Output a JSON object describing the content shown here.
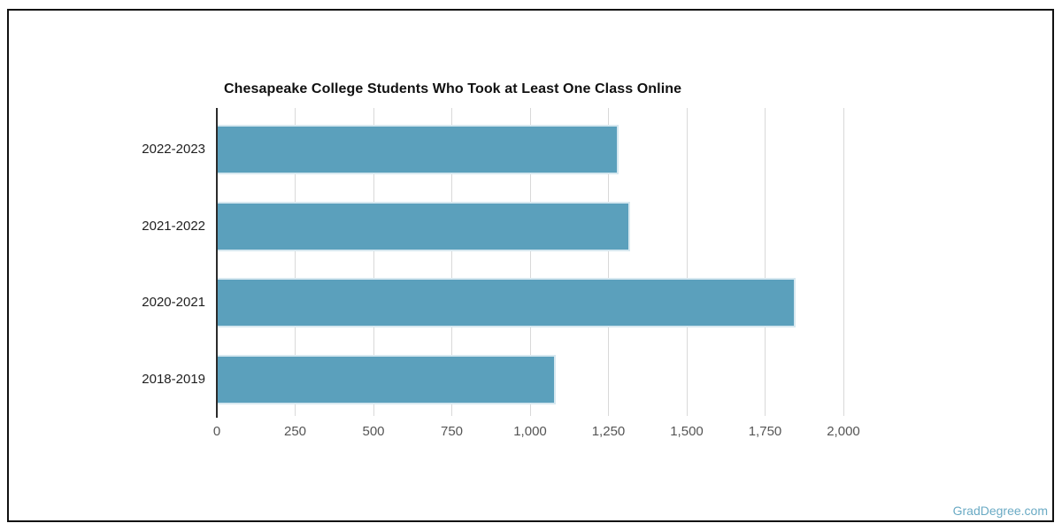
{
  "frame": {
    "border_color": "#111111",
    "background": "#ffffff"
  },
  "chart_data": {
    "type": "bar",
    "orientation": "horizontal",
    "title": "Chesapeake College Students Who Took at Least One Class Online",
    "categories": [
      "2022-2023",
      "2021-2022",
      "2020-2021",
      "2018-2019"
    ],
    "values": [
      1280,
      1315,
      1845,
      1080
    ],
    "xlabel": "",
    "ylabel": "",
    "xlim": [
      0,
      2000
    ],
    "x_ticks": [
      0,
      250,
      500,
      750,
      1000,
      1250,
      1500,
      1750,
      2000
    ],
    "x_tick_labels": [
      "0",
      "250",
      "500",
      "750",
      "1,000",
      "1,250",
      "1,500",
      "1,750",
      "2,000"
    ],
    "bar_color": "#5ba0bc",
    "bar_edge_color": "#d7e8f0",
    "gridline_color": "#d9d9d9",
    "axis_line_color": "#2b2b2b",
    "grid": true,
    "legend": "none"
  },
  "watermark": {
    "text": "GradDegree.com",
    "color": "#6aaac4"
  }
}
